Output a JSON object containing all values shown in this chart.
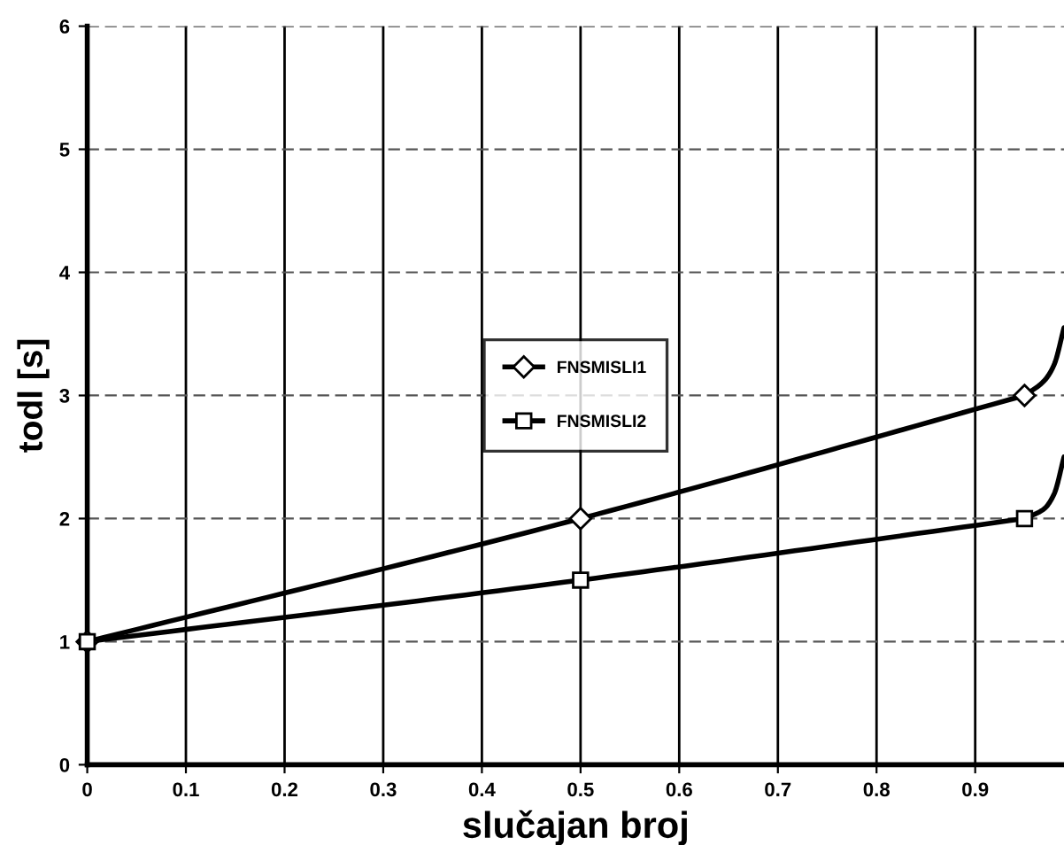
{
  "chart_data": {
    "type": "line",
    "xlabel": "slučajan broj",
    "ylabel": "todl [s]",
    "xlim": [
      0,
      0.99
    ],
    "xticks": [
      0,
      0.1,
      0.2,
      0.3,
      0.4,
      0.5,
      0.6,
      0.7,
      0.8,
      0.9
    ],
    "ylim": [
      0,
      6
    ],
    "yticks": [
      0,
      1,
      2,
      3,
      4,
      5,
      6
    ],
    "grid": true,
    "legend": "center",
    "series": [
      {
        "name": "FNSMISLI1",
        "color": "#000000",
        "marker": "diamond",
        "x": [
          0,
          0.5,
          0.95
        ],
        "values": [
          1,
          2,
          3
        ]
      },
      {
        "name": "FNSMISLI2",
        "color": "#000000",
        "marker": "square",
        "x": [
          0,
          0.5,
          0.95
        ],
        "values": [
          1,
          1.5,
          2
        ]
      },
      {
        "color": "#000000",
        "x": [
          0.95,
          0.97,
          0.98,
          0.99
        ],
        "values": [
          3,
          3.12,
          3.25,
          3.55
        ]
      },
      {
        "color": "#000000",
        "x": [
          0.95,
          0.97,
          0.98,
          0.99
        ],
        "values": [
          2,
          2.08,
          2.2,
          2.5
        ]
      }
    ]
  }
}
